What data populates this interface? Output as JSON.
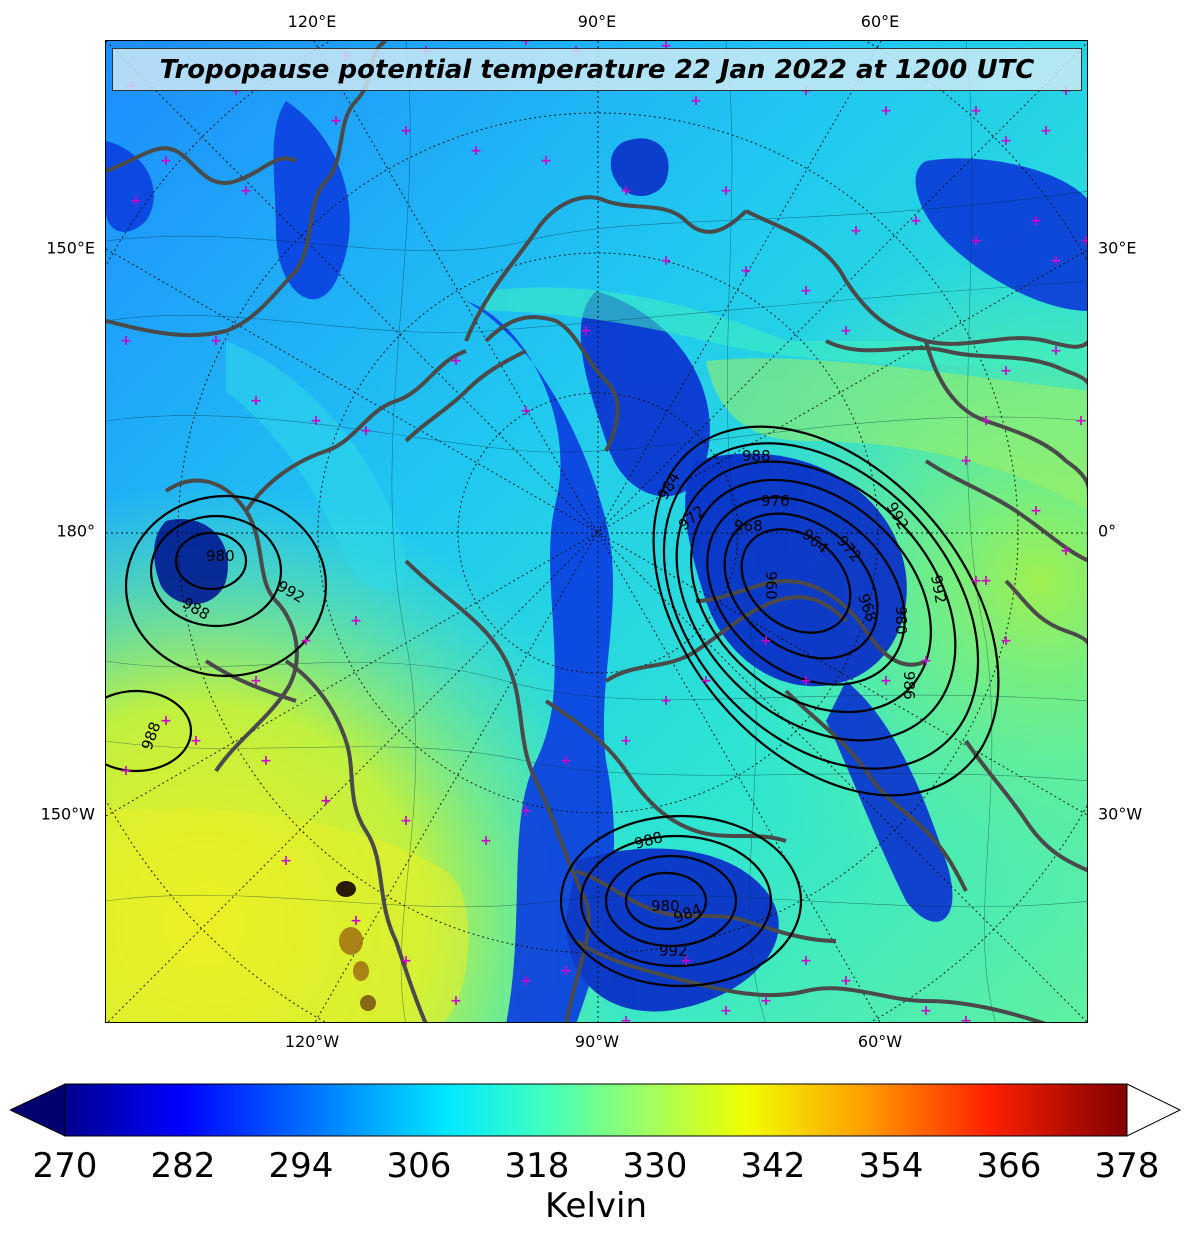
{
  "title": "Tropopause potential temperature 22 Jan 2022 at 1200 UTC",
  "top_lon_labels": [
    "120°E",
    "90°E",
    "60°E"
  ],
  "bottom_lon_labels": [
    "120°W",
    "90°W",
    "60°W"
  ],
  "left_lat_labels": [
    "150°E",
    "180°",
    "150°W"
  ],
  "right_lat_labels": [
    "30°E",
    "0°",
    "30°W"
  ],
  "colorbar": {
    "ticks": [
      "270",
      "282",
      "294",
      "306",
      "318",
      "330",
      "342",
      "354",
      "366",
      "378"
    ],
    "label": "Kelvin",
    "range": [
      270,
      378
    ],
    "colormap": "jet",
    "extend": "both"
  },
  "pressure_contour_labels": {
    "atlantic_low": [
      "988",
      "984",
      "976",
      "968",
      "972",
      "960",
      "964",
      "972",
      "968",
      "992",
      "992",
      "980",
      "986"
    ],
    "pacific_low": [
      "980",
      "992",
      "988",
      "988"
    ],
    "hudson_low": [
      "988",
      "980",
      "984",
      "992"
    ]
  },
  "colors": {
    "coastline": "#4a4a4a",
    "marker": "#cc00cc",
    "contour": "#000000"
  }
}
